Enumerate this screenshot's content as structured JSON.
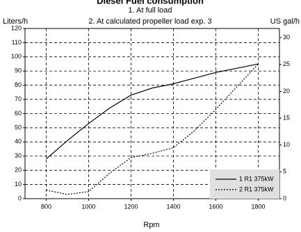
{
  "chart_data": {
    "type": "line",
    "title": "Diesel Fuel consumption",
    "subtitle": [
      "1. At full load",
      "2. At calculated propeller load exp. 3"
    ],
    "ylabel": "Liters/h",
    "y2label": "US gal/h",
    "xlabel": "Rpm",
    "x": [
      800,
      900,
      1000,
      1100,
      1200,
      1300,
      1400,
      1500,
      1600,
      1700,
      1800
    ],
    "series": [
      {
        "name": "1 R1 375kW",
        "color": "#000000",
        "dash": false,
        "values": [
          28,
          41,
          53,
          64,
          73,
          78,
          81,
          85,
          89,
          92,
          95
        ]
      },
      {
        "name": "2 R1 375kW",
        "color": "#000000",
        "dash": true,
        "values": [
          6,
          3,
          5,
          18,
          29,
          32,
          36,
          48,
          63,
          79,
          95
        ]
      }
    ],
    "xlim": [
      700,
      1900
    ],
    "xticks": [
      800,
      1000,
      1200,
      1400,
      1600,
      1800
    ],
    "ylim": [
      0,
      120
    ],
    "yticks": [
      0,
      10,
      20,
      30,
      40,
      50,
      60,
      70,
      80,
      90,
      100,
      110,
      120
    ],
    "y2lim": [
      0,
      31.7
    ],
    "y2ticks": [
      0,
      5,
      10,
      15,
      20,
      25,
      30
    ],
    "grid": true,
    "legend": "lower right"
  }
}
